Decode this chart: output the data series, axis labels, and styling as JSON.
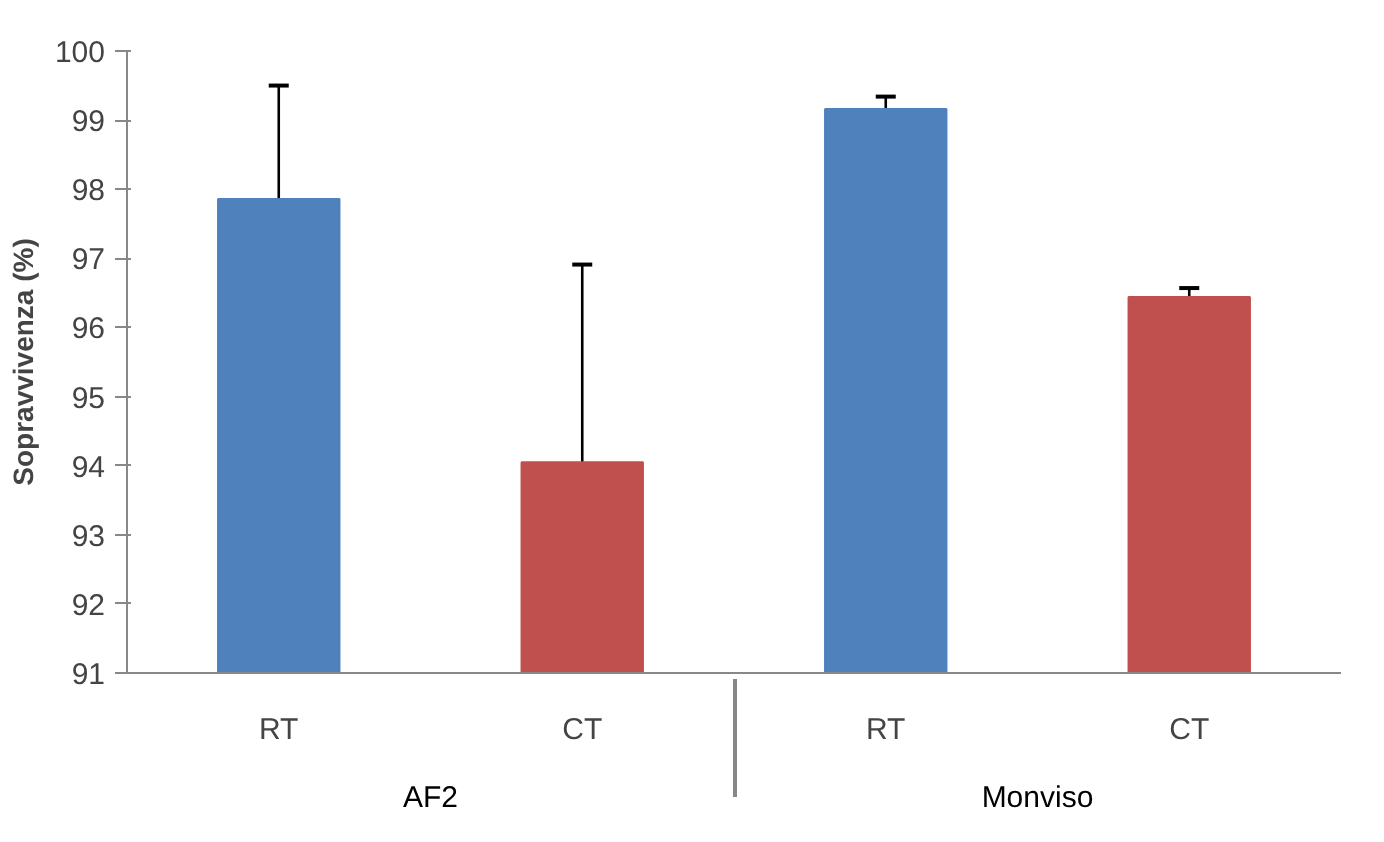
{
  "chart_data": {
    "type": "bar",
    "ylabel": "Sopravvivenza (%)",
    "categories": [
      "RT",
      "CT",
      "RT",
      "CT"
    ],
    "annotations": [
      "AF2",
      "Monviso"
    ],
    "values": [
      97.86,
      94.05,
      99.16,
      96.44
    ],
    "colors": [
      "#4f81bd",
      "#c0504d",
      "#4f81bd",
      "#c0504d"
    ],
    "errors": [
      [
        97.86,
        99.5
      ],
      [
        94.05,
        96.91
      ],
      [
        99.16,
        99.34
      ],
      [
        96.44,
        96.57
      ]
    ],
    "ylim": [
      91,
      100
    ],
    "yticks": [
      91,
      92,
      93,
      94,
      95,
      96,
      97,
      98,
      99,
      100
    ],
    "grid": false
  }
}
